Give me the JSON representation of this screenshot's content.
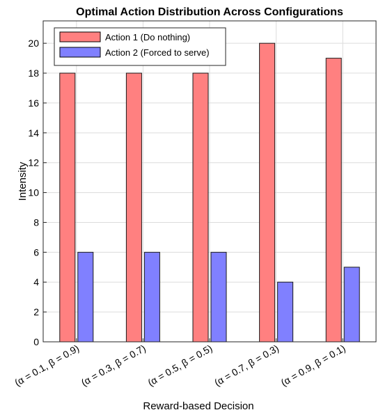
{
  "chart_data": {
    "type": "bar",
    "title": "Optimal Action Distribution Across Configurations",
    "xlabel": "Reward-based Decision",
    "ylabel": "Intensity",
    "categories": [
      "(α = 0.1, β = 0.9)",
      "(α = 0.3, β = 0.7)",
      "(α = 0.5, β = 0.5)",
      "(α = 0.7, β = 0.3)",
      "(α = 0.9, β = 0.1)"
    ],
    "series": [
      {
        "name": "Action 1 (Do nothing)",
        "values": [
          18,
          18,
          18,
          20,
          19
        ],
        "color": "#ff8080"
      },
      {
        "name": "Action 2 (Forced to serve)",
        "values": [
          6,
          6,
          6,
          4,
          5
        ],
        "color": "#8080ff"
      }
    ],
    "ylim": [
      0,
      21.5
    ],
    "yticks": [
      0,
      2,
      4,
      6,
      8,
      10,
      12,
      14,
      16,
      18,
      20
    ],
    "grid": true,
    "legend_position": "top-left"
  }
}
